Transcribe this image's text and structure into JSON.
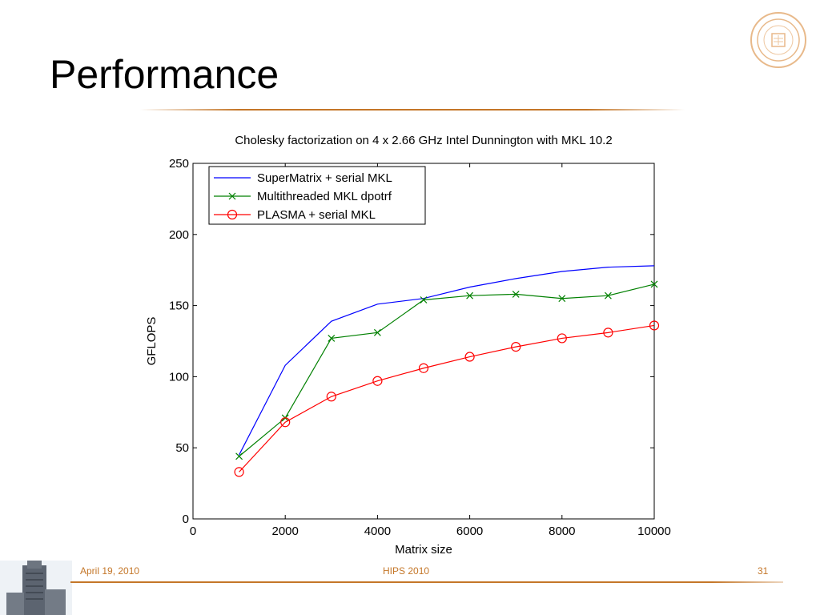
{
  "slide": {
    "title": "Performance",
    "footer_date": "April 19, 2010",
    "footer_center": "HIPS 2010",
    "page_number": "31",
    "accent_color": "#c47628"
  },
  "chart_data": {
    "type": "line",
    "title": "Cholesky factorization on 4 x 2.66 GHz Intel Dunnington with MKL 10.2",
    "xlabel": "Matrix size",
    "ylabel": "GFLOPS",
    "xlim": [
      0,
      10000
    ],
    "ylim": [
      0,
      250
    ],
    "xticks": [
      0,
      2000,
      4000,
      6000,
      8000,
      10000
    ],
    "yticks": [
      0,
      50,
      100,
      150,
      200,
      250
    ],
    "grid": false,
    "legend_position": "top-left",
    "x": [
      1000,
      2000,
      3000,
      4000,
      5000,
      6000,
      7000,
      8000,
      9000,
      10000
    ],
    "series": [
      {
        "name": "SuperMatrix + serial MKL",
        "color": "#0000ff",
        "marker": "none",
        "values": [
          45,
          108,
          139,
          151,
          155,
          163,
          169,
          174,
          177,
          178
        ]
      },
      {
        "name": "Multithreaded MKL dpotrf",
        "color": "#008000",
        "marker": "x",
        "values": [
          44,
          71,
          127,
          131,
          154,
          157,
          158,
          155,
          157,
          165
        ]
      },
      {
        "name": "PLASMA + serial MKL",
        "color": "#ff0000",
        "marker": "circle",
        "values": [
          33,
          68,
          86,
          97,
          106,
          114,
          121,
          127,
          131,
          136
        ]
      }
    ]
  }
}
